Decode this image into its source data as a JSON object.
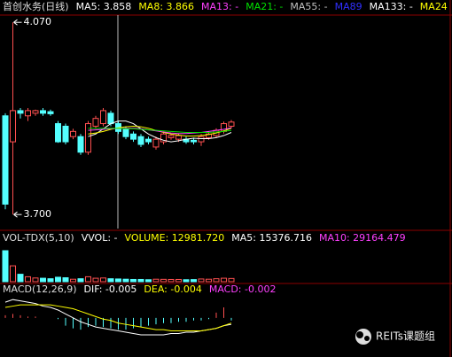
{
  "chart_data": [
    {
      "type": "candlestick",
      "title": "首创水务(日线)",
      "ylim": [
        3.673,
        4.084
      ],
      "up_color": "#ff5050",
      "down_color": "#54ffff",
      "annotations": [
        {
          "value": 4.07,
          "label": "4.070"
        },
        {
          "value": 3.7,
          "label": "3.700"
        }
      ],
      "open": [
        3.89,
        3.84,
        3.9,
        3.89,
        3.895,
        3.9,
        3.898,
        3.875,
        3.87,
        3.85,
        3.85,
        3.82,
        3.87,
        3.875,
        3.895,
        3.875,
        3.865,
        3.855,
        3.85,
        3.845,
        3.83,
        3.84,
        3.848,
        3.845,
        3.845,
        3.843,
        3.84,
        3.848,
        3.852,
        3.86,
        3.87
      ],
      "high": [
        3.895,
        4.07,
        3.905,
        3.905,
        3.902,
        3.905,
        3.902,
        3.88,
        3.875,
        3.865,
        3.855,
        3.88,
        3.89,
        3.905,
        3.9,
        3.88,
        3.87,
        3.86,
        3.855,
        3.85,
        3.85,
        3.86,
        3.856,
        3.856,
        3.85,
        3.848,
        3.855,
        3.86,
        3.866,
        3.879,
        3.882
      ],
      "low": [
        3.71,
        3.7,
        3.885,
        3.88,
        3.89,
        3.89,
        3.89,
        3.838,
        3.835,
        3.845,
        3.815,
        3.815,
        3.865,
        3.87,
        3.87,
        3.855,
        3.845,
        3.84,
        3.83,
        3.835,
        3.825,
        3.835,
        3.844,
        3.84,
        3.836,
        3.835,
        3.832,
        3.844,
        3.848,
        3.856,
        3.866
      ],
      "close": [
        3.72,
        3.9,
        3.895,
        3.9,
        3.9,
        3.895,
        3.894,
        3.84,
        3.84,
        3.86,
        3.82,
        3.875,
        3.885,
        3.9,
        3.875,
        3.86,
        3.85,
        3.845,
        3.835,
        3.84,
        3.845,
        3.855,
        3.852,
        3.852,
        3.84,
        3.84,
        3.85,
        3.855,
        3.862,
        3.875,
        3.878
      ],
      "series": [
        {
          "name": "MA5: 3.858",
          "color": "#ffffff",
          "values": [
            null,
            null,
            null,
            null,
            null,
            null,
            null,
            null,
            null,
            null,
            null,
            3.85,
            3.855,
            3.865,
            3.875,
            3.88,
            3.88,
            3.875,
            3.865,
            3.855,
            3.848,
            3.843,
            3.84,
            3.842,
            3.845,
            3.847,
            3.846,
            3.846,
            3.848,
            3.852,
            3.858
          ]
        },
        {
          "name": "MA8: 3.866",
          "color": "#ffff00",
          "values": [
            null,
            null,
            null,
            null,
            null,
            null,
            null,
            null,
            null,
            null,
            null,
            3.855,
            3.857,
            3.86,
            3.864,
            3.867,
            3.869,
            3.87,
            3.869,
            3.866,
            3.862,
            3.858,
            3.855,
            3.853,
            3.851,
            3.851,
            3.852,
            3.854,
            3.857,
            3.861,
            3.866
          ]
        },
        {
          "name": "MA13: -",
          "color": "#ff40ff",
          "values": [
            null,
            null,
            null,
            null,
            null,
            null,
            null,
            null,
            null,
            null,
            null,
            3.862,
            3.863,
            3.864,
            3.865,
            3.866,
            3.866,
            3.866,
            3.865,
            3.863,
            3.861,
            3.859,
            3.857,
            3.856,
            3.856,
            3.857,
            3.858,
            3.86,
            3.862,
            3.864,
            3.867
          ]
        },
        {
          "name": "MA21: -",
          "color": "#00e000",
          "values": [
            null,
            null,
            null,
            null,
            null,
            null,
            null,
            null,
            null,
            null,
            null,
            3.866,
            3.866,
            3.866,
            3.866,
            3.866,
            3.865,
            3.865,
            3.864,
            3.863,
            3.862,
            3.861,
            3.86,
            3.859,
            3.858,
            3.858,
            3.858,
            3.858,
            3.859,
            3.86,
            3.862
          ]
        },
        {
          "name": "MA55: -",
          "color": "#c0c0c0"
        },
        {
          "name": "MA89",
          "color": "#3030ff"
        },
        {
          "name": "MA133: -",
          "color": "#ffffff"
        },
        {
          "name": "MA24",
          "color": "#ffff00"
        }
      ]
    },
    {
      "type": "bar",
      "title": "VOL-TDX(5,10)",
      "ylim": [
        0,
        200000
      ],
      "series": [
        {
          "name": "VVOL: -",
          "color": "#ffffff"
        },
        {
          "name": "VOLUME: 12981.720",
          "color": "#ffff00",
          "values": [
            125000,
            64000,
            30000,
            20000,
            15000,
            14000,
            12000,
            18000,
            16000,
            10000,
            12000,
            20000,
            14000,
            15000,
            12000,
            11000,
            10000,
            9000,
            9000,
            8000,
            10000,
            9500,
            9000,
            9000,
            8000,
            8500,
            11000,
            10000,
            12000,
            14000,
            12981.72
          ]
        },
        {
          "name": "MA5: 15376.716",
          "color": "#ffffff"
        },
        {
          "name": "MA10: 29164.479",
          "color": "#ff40ff"
        }
      ]
    },
    {
      "type": "macd",
      "title": "MACD(12,26,9)",
      "ylim": [
        -0.03,
        0.025
      ],
      "series": [
        {
          "name": "DIF: -0.005",
          "color": "#ffffff",
          "style": "line",
          "values": [
            0.012,
            0.014,
            0.013,
            0.012,
            0.011,
            0.009,
            0.008,
            0.006,
            0.003,
            0.0,
            -0.003,
            -0.005,
            -0.007,
            -0.008,
            -0.009,
            -0.01,
            -0.011,
            -0.012,
            -0.013,
            -0.013,
            -0.013,
            -0.013,
            -0.012,
            -0.012,
            -0.011,
            -0.011,
            -0.01,
            -0.009,
            -0.008,
            -0.006,
            -0.005
          ]
        },
        {
          "name": "DEA: -0.004",
          "color": "#ffff00",
          "style": "line",
          "values": [
            0.008,
            0.009,
            0.01,
            0.01,
            0.01,
            0.01,
            0.01,
            0.009,
            0.008,
            0.007,
            0.005,
            0.003,
            0.001,
            -0.001,
            -0.002,
            -0.004,
            -0.005,
            -0.006,
            -0.007,
            -0.008,
            -0.009,
            -0.009,
            -0.01,
            -0.01,
            -0.01,
            -0.01,
            -0.01,
            -0.009,
            -0.008,
            -0.006,
            -0.004
          ]
        },
        {
          "name": "MACD: -0.002",
          "color": "#ff40ff",
          "style": "bar",
          "values": [
            0.002,
            0.003,
            0.002,
            0.001,
            0.001,
            0.0,
            0.0,
            -0.001,
            -0.006,
            -0.008,
            -0.009,
            -0.007,
            -0.006,
            -0.007,
            -0.008,
            -0.009,
            -0.009,
            -0.008,
            -0.007,
            -0.006,
            -0.005,
            -0.004,
            -0.004,
            -0.003,
            -0.003,
            -0.002,
            -0.002,
            -0.001,
            0.004,
            0.008,
            -0.002
          ]
        }
      ]
    }
  ],
  "watermark": "REITs课题组"
}
